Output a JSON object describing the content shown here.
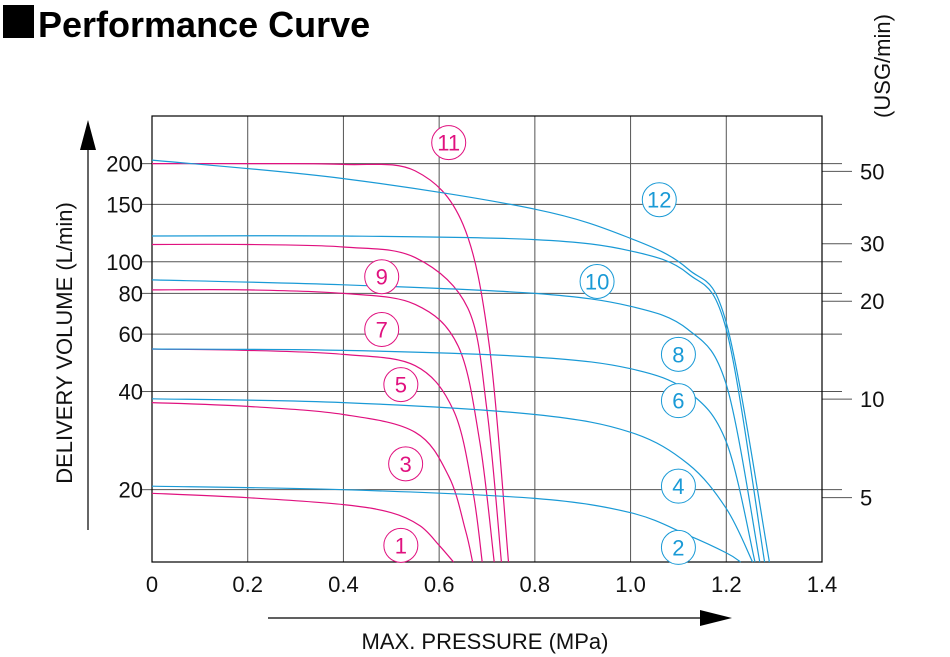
{
  "chart_data": {
    "type": "line",
    "title": "Performance Curve",
    "xlabel": "MAX. PRESSURE (MPa)",
    "ylabel": "DELIVERY VOLUME (L/min)",
    "y2label": "(USG/min)",
    "xlim": [
      0,
      1.4
    ],
    "ylim": [
      12,
      280
    ],
    "y_scale": "log",
    "grid": true,
    "x_ticks": [
      {
        "value": 0,
        "label": "0"
      },
      {
        "value": 0.2,
        "label": "0.2"
      },
      {
        "value": 0.4,
        "label": "0.4"
      },
      {
        "value": 0.6,
        "label": "0.6"
      },
      {
        "value": 0.8,
        "label": "0.8"
      },
      {
        "value": 1.0,
        "label": "1.0"
      },
      {
        "value": 1.2,
        "label": "1.2"
      },
      {
        "value": 1.4,
        "label": "1.4"
      }
    ],
    "y_ticks": [
      {
        "value": 20,
        "label": "20"
      },
      {
        "value": 40,
        "label": "40"
      },
      {
        "value": 60,
        "label": "60"
      },
      {
        "value": 80,
        "label": "80"
      },
      {
        "value": 100,
        "label": "100"
      },
      {
        "value": 150,
        "label": "150"
      },
      {
        "value": 200,
        "label": "200"
      }
    ],
    "y2_ticks": [
      {
        "value": 18.9,
        "label": "5"
      },
      {
        "value": 37.9,
        "label": "10"
      },
      {
        "value": 75.7,
        "label": "20"
      },
      {
        "value": 113.6,
        "label": "30"
      },
      {
        "value": 189.3,
        "label": "50"
      }
    ],
    "series": [
      {
        "name": "1",
        "color": "#e0117f",
        "label_at": [
          0.52,
          13.5
        ],
        "points": [
          [
            0,
            19.5
          ],
          [
            0.2,
            18.9
          ],
          [
            0.4,
            18
          ],
          [
            0.5,
            17
          ],
          [
            0.56,
            15.5
          ],
          [
            0.6,
            13.5
          ],
          [
            0.63,
            12
          ]
        ]
      },
      {
        "name": "3",
        "color": "#e0117f",
        "label_at": [
          0.53,
          24
        ],
        "points": [
          [
            0,
            37
          ],
          [
            0.2,
            36
          ],
          [
            0.4,
            34
          ],
          [
            0.55,
            30
          ],
          [
            0.62,
            22
          ],
          [
            0.655,
            15
          ],
          [
            0.67,
            12
          ]
        ]
      },
      {
        "name": "5",
        "color": "#e0117f",
        "label_at": [
          0.52,
          42
        ],
        "points": [
          [
            0,
            54
          ],
          [
            0.2,
            53.5
          ],
          [
            0.4,
            52
          ],
          [
            0.55,
            48
          ],
          [
            0.63,
            35
          ],
          [
            0.67,
            20
          ],
          [
            0.69,
            12
          ]
        ]
      },
      {
        "name": "7",
        "color": "#e0117f",
        "label_at": [
          0.48,
          62
        ],
        "points": [
          [
            0,
            82
          ],
          [
            0.2,
            82
          ],
          [
            0.4,
            80
          ],
          [
            0.55,
            74
          ],
          [
            0.64,
            55
          ],
          [
            0.685,
            28
          ],
          [
            0.715,
            12
          ]
        ]
      },
      {
        "name": "9",
        "color": "#e0117f",
        "label_at": [
          0.48,
          90
        ],
        "points": [
          [
            0,
            113
          ],
          [
            0.2,
            113
          ],
          [
            0.4,
            111
          ],
          [
            0.55,
            103
          ],
          [
            0.66,
            72
          ],
          [
            0.7,
            35
          ],
          [
            0.73,
            12
          ]
        ]
      },
      {
        "name": "11",
        "color": "#e0117f",
        "label_at": [
          0.62,
          232
        ],
        "points": [
          [
            0,
            200
          ],
          [
            0.2,
            200
          ],
          [
            0.4,
            199
          ],
          [
            0.55,
            190
          ],
          [
            0.65,
            130
          ],
          [
            0.705,
            55
          ],
          [
            0.745,
            12
          ]
        ]
      },
      {
        "name": "2",
        "color": "#1a9ad6",
        "label_at": [
          1.1,
          13.3
        ],
        "points": [
          [
            0,
            20.5
          ],
          [
            0.4,
            20
          ],
          [
            0.8,
            18.8
          ],
          [
            1.0,
            17
          ],
          [
            1.12,
            14.5
          ],
          [
            1.2,
            12.8
          ],
          [
            1.23,
            12
          ]
        ]
      },
      {
        "name": "4",
        "color": "#1a9ad6",
        "label_at": [
          1.1,
          20.5
        ],
        "points": [
          [
            0,
            38
          ],
          [
            0.4,
            37
          ],
          [
            0.8,
            34
          ],
          [
            1.0,
            30
          ],
          [
            1.12,
            24
          ],
          [
            1.2,
            17.5
          ],
          [
            1.255,
            12
          ]
        ]
      },
      {
        "name": "6",
        "color": "#1a9ad6",
        "label_at": [
          1.1,
          37.5
        ],
        "points": [
          [
            0,
            54
          ],
          [
            0.4,
            53.5
          ],
          [
            0.8,
            51
          ],
          [
            1.0,
            47
          ],
          [
            1.12,
            40
          ],
          [
            1.2,
            28
          ],
          [
            1.26,
            12
          ]
        ]
      },
      {
        "name": "8",
        "color": "#1a9ad6",
        "label_at": [
          1.1,
          52
        ],
        "points": [
          [
            0,
            88
          ],
          [
            0.4,
            85
          ],
          [
            0.8,
            80
          ],
          [
            1.0,
            73
          ],
          [
            1.12,
            62
          ],
          [
            1.2,
            42
          ],
          [
            1.27,
            12
          ]
        ]
      },
      {
        "name": "10",
        "color": "#1a9ad6",
        "label_at": [
          0.93,
          87
        ],
        "points": [
          [
            0,
            120
          ],
          [
            0.4,
            120
          ],
          [
            0.8,
            117
          ],
          [
            1.0,
            108
          ],
          [
            1.12,
            92
          ],
          [
            1.2,
            62
          ],
          [
            1.28,
            12
          ]
        ]
      },
      {
        "name": "12",
        "color": "#1a9ad6",
        "label_at": [
          1.06,
          155
        ],
        "points": [
          [
            0,
            205
          ],
          [
            0.4,
            180
          ],
          [
            0.8,
            145
          ],
          [
            1.0,
            118
          ],
          [
            1.12,
            95
          ],
          [
            1.2,
            65
          ],
          [
            1.29,
            12
          ]
        ]
      }
    ]
  }
}
